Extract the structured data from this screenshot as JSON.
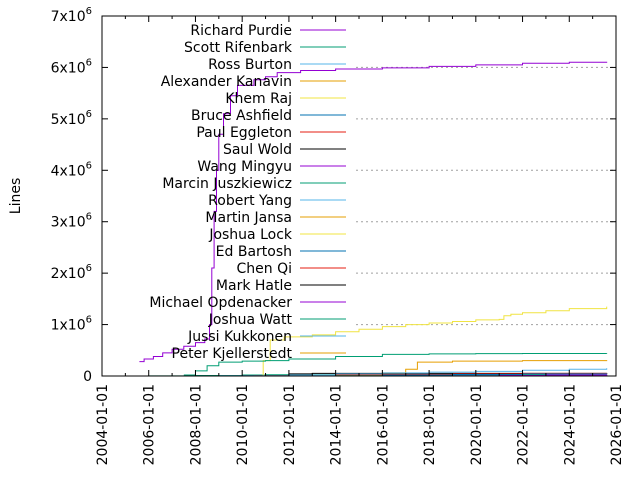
{
  "chart_data": {
    "type": "line",
    "title": "",
    "xlabel": "",
    "ylabel": "Lines",
    "xlim": [
      2004.0,
      2026.0
    ],
    "ylim": [
      0,
      7000000
    ],
    "x_tick_labels": [
      "2004-01-01",
      "2006-01-01",
      "2008-01-01",
      "2010-01-01",
      "2012-01-01",
      "2014-01-01",
      "2016-01-01",
      "2018-01-01",
      "2020-01-01",
      "2022-01-01",
      "2024-01-01",
      "2026-01-01"
    ],
    "y_ticks": [
      {
        "value": 0,
        "mantissa": "0",
        "exp": ""
      },
      {
        "value": 1000000,
        "mantissa": "1x10",
        "exp": "6"
      },
      {
        "value": 2000000,
        "mantissa": "2x10",
        "exp": "6"
      },
      {
        "value": 3000000,
        "mantissa": "3x10",
        "exp": "6"
      },
      {
        "value": 4000000,
        "mantissa": "4x10",
        "exp": "6"
      },
      {
        "value": 5000000,
        "mantissa": "5x10",
        "exp": "6"
      },
      {
        "value": 6000000,
        "mantissa": "6x10",
        "exp": "6"
      },
      {
        "value": 7000000,
        "mantissa": "7x10",
        "exp": "6"
      }
    ],
    "grid": true,
    "legend_position": "top-left",
    "series": [
      {
        "name": "Richard Purdie",
        "color": "#9400d3",
        "points": [
          [
            2005.6,
            280000
          ],
          [
            2005.8,
            330000
          ],
          [
            2006.2,
            380000
          ],
          [
            2006.6,
            450000
          ],
          [
            2007.0,
            520000
          ],
          [
            2007.5,
            580000
          ],
          [
            2008.0,
            650000
          ],
          [
            2008.4,
            720000
          ],
          [
            2008.6,
            1000000
          ],
          [
            2008.7,
            2100000
          ],
          [
            2008.8,
            3200000
          ],
          [
            2008.9,
            4000000
          ],
          [
            2009.0,
            4700000
          ],
          [
            2009.2,
            5100000
          ],
          [
            2009.5,
            5450000
          ],
          [
            2009.8,
            5650000
          ],
          [
            2010.5,
            5760000
          ],
          [
            2011.0,
            5820000
          ],
          [
            2011.5,
            5900000
          ],
          [
            2012.5,
            5940000
          ],
          [
            2014.0,
            5970000
          ],
          [
            2016.0,
            5990000
          ],
          [
            2018.0,
            6020000
          ],
          [
            2020.0,
            6050000
          ],
          [
            2022.0,
            6080000
          ],
          [
            2024.0,
            6100000
          ],
          [
            2025.6,
            6110000
          ]
        ]
      },
      {
        "name": "Scott Rifenbark",
        "color": "#009e73",
        "points": [
          [
            2007.5,
            20000
          ],
          [
            2008.0,
            100000
          ],
          [
            2008.5,
            200000
          ],
          [
            2009.0,
            270000
          ],
          [
            2010.0,
            290000
          ],
          [
            2011.0,
            300000
          ],
          [
            2012.0,
            330000
          ],
          [
            2014.0,
            380000
          ],
          [
            2016.0,
            420000
          ],
          [
            2018.0,
            430000
          ],
          [
            2020.0,
            435000
          ],
          [
            2022.0,
            438000
          ],
          [
            2025.6,
            440000
          ]
        ]
      },
      {
        "name": "Ross Burton",
        "color": "#56b4e9",
        "points": [
          [
            2009.0,
            5000
          ],
          [
            2012.0,
            20000
          ],
          [
            2014.0,
            40000
          ],
          [
            2016.0,
            60000
          ],
          [
            2018.0,
            75000
          ],
          [
            2020.0,
            90000
          ],
          [
            2022.0,
            110000
          ],
          [
            2024.0,
            130000
          ],
          [
            2025.6,
            150000
          ]
        ]
      },
      {
        "name": "Alexander Kanavin",
        "color": "#e69f00",
        "points": [
          [
            2014.0,
            5000
          ],
          [
            2016.0,
            60000
          ],
          [
            2017.0,
            130000
          ],
          [
            2017.5,
            270000
          ],
          [
            2019.0,
            290000
          ],
          [
            2022.0,
            300000
          ],
          [
            2025.6,
            310000
          ]
        ]
      },
      {
        "name": "Khem Raj",
        "color": "#f0e442",
        "points": [
          [
            2010.5,
            0
          ],
          [
            2010.9,
            300000
          ],
          [
            2011.2,
            700000
          ],
          [
            2011.8,
            760000
          ],
          [
            2013.0,
            800000
          ],
          [
            2014.0,
            860000
          ],
          [
            2015.0,
            910000
          ],
          [
            2016.0,
            960000
          ],
          [
            2017.0,
            1000000
          ],
          [
            2018.0,
            1030000
          ],
          [
            2019.0,
            1060000
          ],
          [
            2020.0,
            1090000
          ],
          [
            2021.0,
            1100000
          ],
          [
            2021.2,
            1170000
          ],
          [
            2021.5,
            1200000
          ],
          [
            2022.0,
            1230000
          ],
          [
            2023.0,
            1270000
          ],
          [
            2024.0,
            1310000
          ],
          [
            2025.6,
            1350000
          ]
        ]
      },
      {
        "name": "Bruce Ashfield",
        "color": "#0072b2",
        "points": [
          [
            2010.0,
            2000
          ],
          [
            2013.0,
            10000
          ],
          [
            2016.0,
            20000
          ],
          [
            2019.0,
            30000
          ],
          [
            2022.0,
            40000
          ],
          [
            2025.6,
            50000
          ]
        ]
      },
      {
        "name": "Paul Eggleton",
        "color": "#e51e10",
        "points": [
          [
            2010.5,
            5000
          ],
          [
            2013.0,
            20000
          ],
          [
            2016.0,
            30000
          ],
          [
            2019.0,
            40000
          ],
          [
            2022.0,
            50000
          ],
          [
            2025.6,
            60000
          ]
        ]
      },
      {
        "name": "Saul Wold",
        "color": "#000000",
        "points": [
          [
            2010.0,
            2000
          ],
          [
            2012.0,
            40000
          ],
          [
            2013.0,
            50000
          ],
          [
            2025.6,
            55000
          ]
        ]
      },
      {
        "name": "Wang Mingyu",
        "color": "#9400d3",
        "points": [
          [
            2019.0,
            2000
          ],
          [
            2021.0,
            10000
          ],
          [
            2023.0,
            20000
          ],
          [
            2025.6,
            30000
          ]
        ]
      },
      {
        "name": "Marcin Juszkiewicz",
        "color": "#009e73",
        "points": [
          [
            2006.0,
            1000
          ],
          [
            2008.0,
            10000
          ],
          [
            2010.0,
            20000
          ],
          [
            2011.0,
            25000
          ],
          [
            2025.6,
            25000
          ]
        ]
      },
      {
        "name": "Robert Yang",
        "color": "#56b4e9",
        "points": [
          [
            2010.0,
            1000
          ],
          [
            2014.0,
            10000
          ],
          [
            2018.0,
            20000
          ],
          [
            2025.6,
            25000
          ]
        ]
      },
      {
        "name": "Martin Jansa",
        "color": "#e69f00",
        "points": [
          [
            2011.0,
            1000
          ],
          [
            2015.0,
            8000
          ],
          [
            2020.0,
            15000
          ],
          [
            2025.6,
            20000
          ]
        ]
      },
      {
        "name": "Joshua Lock",
        "color": "#f0e442",
        "points": [
          [
            2009.0,
            1000
          ],
          [
            2013.0,
            8000
          ],
          [
            2018.0,
            15000
          ],
          [
            2025.6,
            18000
          ]
        ]
      },
      {
        "name": "Ed Bartosh",
        "color": "#0072b2",
        "points": [
          [
            2015.0,
            1000
          ],
          [
            2016.5,
            10000
          ],
          [
            2017.5,
            15000
          ],
          [
            2025.6,
            16000
          ]
        ]
      },
      {
        "name": "Chen Qi",
        "color": "#e51e10",
        "points": [
          [
            2011.0,
            1000
          ],
          [
            2016.0,
            8000
          ],
          [
            2021.0,
            12000
          ],
          [
            2025.6,
            15000
          ]
        ]
      },
      {
        "name": "Mark Hatle",
        "color": "#000000",
        "points": [
          [
            2010.0,
            1000
          ],
          [
            2015.0,
            6000
          ],
          [
            2020.0,
            10000
          ],
          [
            2025.6,
            13000
          ]
        ]
      },
      {
        "name": "Michael Opdenacker",
        "color": "#9400d3",
        "points": [
          [
            2021.0,
            1000
          ],
          [
            2023.0,
            5000
          ],
          [
            2025.6,
            12000
          ]
        ]
      },
      {
        "name": "Joshua Watt",
        "color": "#009e73",
        "points": [
          [
            2017.0,
            1000
          ],
          [
            2020.0,
            5000
          ],
          [
            2025.6,
            10000
          ]
        ]
      },
      {
        "name": "Jussi Kukkonen",
        "color": "#56b4e9",
        "points": [
          [
            2015.0,
            1000
          ],
          [
            2017.0,
            5000
          ],
          [
            2019.0,
            8000
          ],
          [
            2025.6,
            9000
          ]
        ]
      },
      {
        "name": "Peter Kjellerstedt",
        "color": "#e69f00",
        "points": [
          [
            2012.0,
            1000
          ],
          [
            2018.0,
            4000
          ],
          [
            2025.6,
            8000
          ]
        ]
      }
    ]
  }
}
